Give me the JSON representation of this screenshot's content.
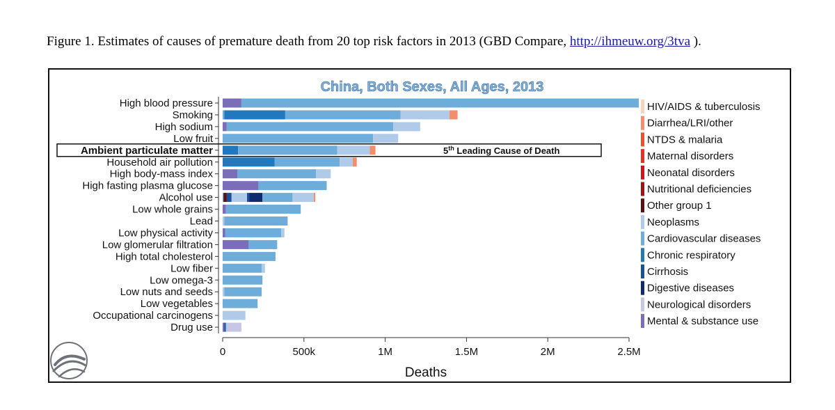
{
  "caption": {
    "prefix": "Figure 1. Estimates of causes of premature death from 20 top risk factors in 2013 (GBD Compare,",
    "link": "http://ihmeuw.org/3tva",
    "suffix": " )."
  },
  "colors": {
    "background": "#ffffff",
    "title_fill": "#7fb0d8",
    "title_stroke": "#2f5f93",
    "axis": "#333333",
    "highlight_box": "#111111"
  },
  "chart_data": {
    "type": "bar",
    "orientation": "horizontal",
    "stacked": true,
    "title": "China, Both Sexes, All Ages, 2013",
    "xlabel": "Deaths",
    "ylabel": "",
    "xlim": [
      0,
      2500000
    ],
    "xticks": [
      0,
      500000,
      1000000,
      1500000,
      2000000,
      2500000
    ],
    "xtick_labels": [
      "0",
      "500k",
      "1M",
      "1.5M",
      "2M",
      "2.5M"
    ],
    "grid": false,
    "legend_position": "right",
    "annotation": {
      "category": "Ambient particulate matter",
      "text_main": "5",
      "text_sup": "th",
      "text_rest": " Leading Cause of Death"
    },
    "series": [
      {
        "name": "HIV/AIDS & tuberculosis",
        "color": "#f7d2bf"
      },
      {
        "name": "Diarrhea/LRI/other",
        "color": "#f28e6b"
      },
      {
        "name": "NTDS & malaria",
        "color": "#e8532e"
      },
      {
        "name": "Maternal disorders",
        "color": "#e63023"
      },
      {
        "name": "Neonatal disorders",
        "color": "#d1141c"
      },
      {
        "name": "Nutritional deficiencies",
        "color": "#9c1616"
      },
      {
        "name": "Other group 1",
        "color": "#5c1010"
      },
      {
        "name": "Neoplasms",
        "color": "#afcbe9"
      },
      {
        "name": "Cardiovascular diseases",
        "color": "#6eacd9"
      },
      {
        "name": "Chronic respiratory",
        "color": "#2178bd"
      },
      {
        "name": "Cirrhosis",
        "color": "#1a4f9c"
      },
      {
        "name": "Digestive diseases",
        "color": "#0f2a6e"
      },
      {
        "name": "Neurological disorders",
        "color": "#c8c6e6"
      },
      {
        "name": "Mental & substance use",
        "color": "#7b6db7"
      }
    ],
    "categories": [
      "High blood pressure",
      "Smoking",
      "High sodium",
      "Low fruit",
      "Ambient particulate matter",
      "Household air pollution",
      "High body-mass index",
      "High fasting plasma glucose",
      "Alcohol use",
      "Low whole grains",
      "Lead",
      "Low physical activity",
      "Low glomerular filtration",
      "High total cholesterol",
      "Low fiber",
      "Low omega-3",
      "Low nuts and seeds",
      "Low vegetables",
      "Occupational carcinogens",
      "Drug use"
    ],
    "highlight_category": "Ambient particulate matter",
    "segments": [
      [
        {
          "cause": "Mental & substance use",
          "value": 115000
        },
        {
          "cause": "Cardiovascular diseases",
          "value": 2445000
        }
      ],
      [
        {
          "cause": "Cardiovascular diseases",
          "value": 10000
        },
        {
          "cause": "Chronic respiratory",
          "value": 375000
        },
        {
          "cause": "Cardiovascular diseases",
          "value": 710000
        },
        {
          "cause": "Neoplasms",
          "value": 300000
        },
        {
          "cause": "Diarrhea/LRI/other",
          "value": 50000
        }
      ],
      [
        {
          "cause": "Mental & substance use",
          "value": 25000
        },
        {
          "cause": "Cardiovascular diseases",
          "value": 1025000
        },
        {
          "cause": "Neoplasms",
          "value": 165000
        }
      ],
      [
        {
          "cause": "Cardiovascular diseases",
          "value": 925000
        },
        {
          "cause": "Neoplasms",
          "value": 155000
        }
      ],
      [
        {
          "cause": "Chronic respiratory",
          "value": 95000
        },
        {
          "cause": "Cardiovascular diseases",
          "value": 610000
        },
        {
          "cause": "Neoplasms",
          "value": 200000
        },
        {
          "cause": "Diarrhea/LRI/other",
          "value": 35000
        }
      ],
      [
        {
          "cause": "Chronic respiratory",
          "value": 320000
        },
        {
          "cause": "Cardiovascular diseases",
          "value": 400000
        },
        {
          "cause": "Neoplasms",
          "value": 80000
        },
        {
          "cause": "Diarrhea/LRI/other",
          "value": 25000
        }
      ],
      [
        {
          "cause": "Mental & substance use",
          "value": 90000
        },
        {
          "cause": "Cardiovascular diseases",
          "value": 485000
        },
        {
          "cause": "Neoplasms",
          "value": 90000
        }
      ],
      [
        {
          "cause": "Mental & substance use",
          "value": 220000
        },
        {
          "cause": "Cardiovascular diseases",
          "value": 420000
        }
      ],
      [
        {
          "cause": "Cardiovascular diseases",
          "value": 5000
        },
        {
          "cause": "Other group 1",
          "value": 20000
        },
        {
          "cause": "Cirrhosis",
          "value": 30000
        },
        {
          "cause": "Neoplasms",
          "value": 95000
        },
        {
          "cause": "Cirrhosis",
          "value": 15000
        },
        {
          "cause": "Digestive diseases",
          "value": 80000
        },
        {
          "cause": "Cardiovascular diseases",
          "value": 185000
        },
        {
          "cause": "Neoplasms",
          "value": 130000
        },
        {
          "cause": "Diarrhea/LRI/other",
          "value": 10000
        }
      ],
      [
        {
          "cause": "Mental & substance use",
          "value": 20000
        },
        {
          "cause": "Cardiovascular diseases",
          "value": 460000
        }
      ],
      [
        {
          "cause": "Neoplasms",
          "value": 10000
        },
        {
          "cause": "Cardiovascular diseases",
          "value": 390000
        }
      ],
      [
        {
          "cause": "Mental & substance use",
          "value": 15000
        },
        {
          "cause": "Cardiovascular diseases",
          "value": 345000
        },
        {
          "cause": "Neoplasms",
          "value": 20000
        }
      ],
      [
        {
          "cause": "Mental & substance use",
          "value": 160000
        },
        {
          "cause": "Cardiovascular diseases",
          "value": 175000
        }
      ],
      [
        {
          "cause": "Cardiovascular diseases",
          "value": 325000
        }
      ],
      [
        {
          "cause": "Cardiovascular diseases",
          "value": 240000
        },
        {
          "cause": "Neoplasms",
          "value": 20000
        }
      ],
      [
        {
          "cause": "Cardiovascular diseases",
          "value": 245000
        }
      ],
      [
        {
          "cause": "Neoplasms",
          "value": 10000
        },
        {
          "cause": "Cardiovascular diseases",
          "value": 230000
        }
      ],
      [
        {
          "cause": "Cardiovascular diseases",
          "value": 215000
        }
      ],
      [
        {
          "cause": "Neoplasms",
          "value": 140000
        }
      ],
      [
        {
          "cause": "Mental & substance use",
          "value": 10000
        },
        {
          "cause": "Cirrhosis",
          "value": 10000
        },
        {
          "cause": "Neoplasms",
          "value": 10000
        },
        {
          "cause": "Neurological disorders",
          "value": 85000
        }
      ]
    ]
  }
}
